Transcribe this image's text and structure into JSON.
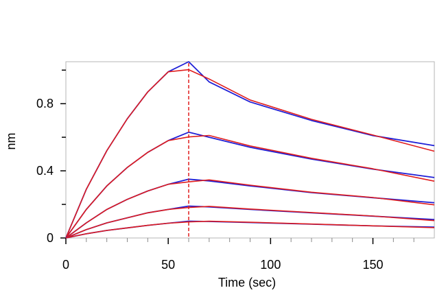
{
  "chart_data": {
    "type": "line",
    "title": "",
    "xlabel": "Time (sec)",
    "ylabel": "nm",
    "xlim": [
      0,
      180
    ],
    "ylim": [
      0,
      1.05
    ],
    "x_ticks": [
      0,
      50,
      100,
      150
    ],
    "x_tick_labels": [
      "0",
      "50",
      "100",
      "150"
    ],
    "y_ticks": [
      0,
      0.4,
      0.8
    ],
    "y_tick_labels": [
      "0",
      "0.4",
      "0.8"
    ],
    "grid": false,
    "legend": "none",
    "dissociation_start": 60,
    "colors": {
      "measured": "#1f1fd6",
      "fit": "#e01c1c",
      "frame": "#b4b4b4"
    },
    "series": [
      {
        "x": [
          0,
          10,
          20,
          30,
          40,
          50,
          60,
          70,
          90,
          120,
          150,
          180
        ],
        "values": [
          0,
          0.29,
          0.52,
          0.71,
          0.87,
          0.99,
          1.05,
          0.93,
          0.81,
          0.7,
          0.61,
          0.55
        ]
      },
      {
        "x": [
          0,
          10,
          20,
          30,
          40,
          50,
          60,
          70,
          90,
          120,
          150,
          180
        ],
        "values": [
          0,
          0.17,
          0.31,
          0.42,
          0.51,
          0.58,
          0.63,
          0.6,
          0.54,
          0.47,
          0.41,
          0.36
        ]
      },
      {
        "x": [
          0,
          10,
          20,
          30,
          40,
          50,
          60,
          70,
          90,
          120,
          150,
          180
        ],
        "values": [
          0,
          0.09,
          0.17,
          0.23,
          0.28,
          0.32,
          0.35,
          0.34,
          0.31,
          0.27,
          0.24,
          0.21
        ]
      },
      {
        "x": [
          0,
          10,
          20,
          30,
          40,
          50,
          60,
          70,
          90,
          120,
          150,
          180
        ],
        "values": [
          0,
          0.05,
          0.09,
          0.12,
          0.15,
          0.17,
          0.19,
          0.185,
          0.17,
          0.15,
          0.13,
          0.11
        ]
      },
      {
        "x": [
          0,
          10,
          20,
          30,
          40,
          50,
          60,
          70,
          90,
          120,
          150,
          180
        ],
        "values": [
          0,
          0.025,
          0.045,
          0.06,
          0.075,
          0.088,
          0.1,
          0.098,
          0.092,
          0.082,
          0.072,
          0.065
        ]
      }
    ]
  }
}
